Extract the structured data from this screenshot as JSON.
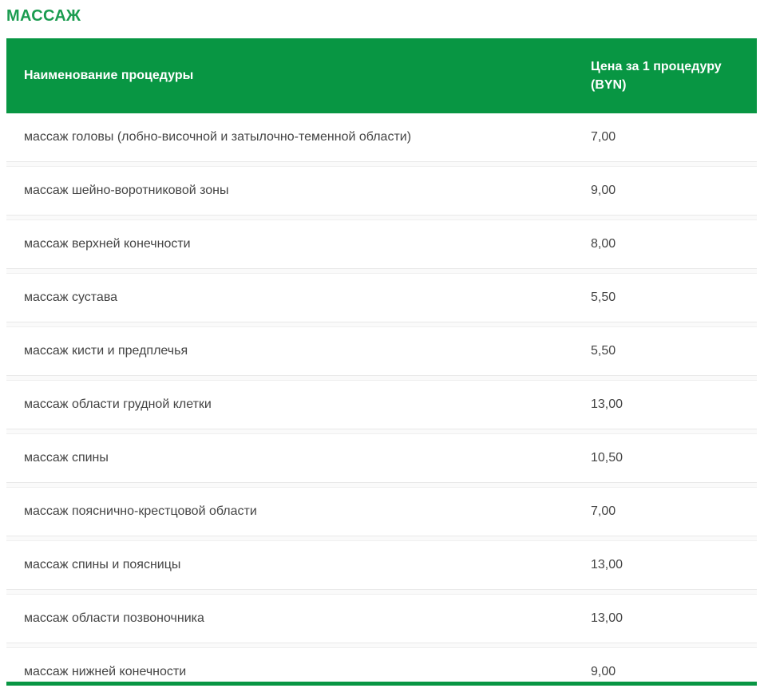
{
  "page_title": "МАССАЖ",
  "colors": {
    "header_green": "#089643",
    "title_green": "#1b9c50",
    "row_text": "#444444"
  },
  "table": {
    "header": {
      "name_label": "Наименование процедуры",
      "price_label": "Цена за 1 процедуру (BYN)"
    },
    "rows": [
      {
        "name": "массаж головы (лобно-височной и затылочно-теменной области)",
        "price": "7,00"
      },
      {
        "name": "массаж шейно-воротниковой зоны",
        "price": "9,00"
      },
      {
        "name": "массаж верхней конечности",
        "price": "8,00"
      },
      {
        "name": "массаж сустава",
        "price": "5,50"
      },
      {
        "name": "массаж кисти и предплечья",
        "price": "5,50"
      },
      {
        "name": "массаж области грудной клетки",
        "price": "13,00"
      },
      {
        "name": "массаж спины",
        "price": "10,50"
      },
      {
        "name": "массаж пояснично-крестцовой области",
        "price": "7,00"
      },
      {
        "name": "массаж спины и поясницы",
        "price": "13,00"
      },
      {
        "name": "массаж области позвоночника",
        "price": "13,00"
      },
      {
        "name": "массаж нижней конечности",
        "price": "9,00"
      }
    ]
  }
}
